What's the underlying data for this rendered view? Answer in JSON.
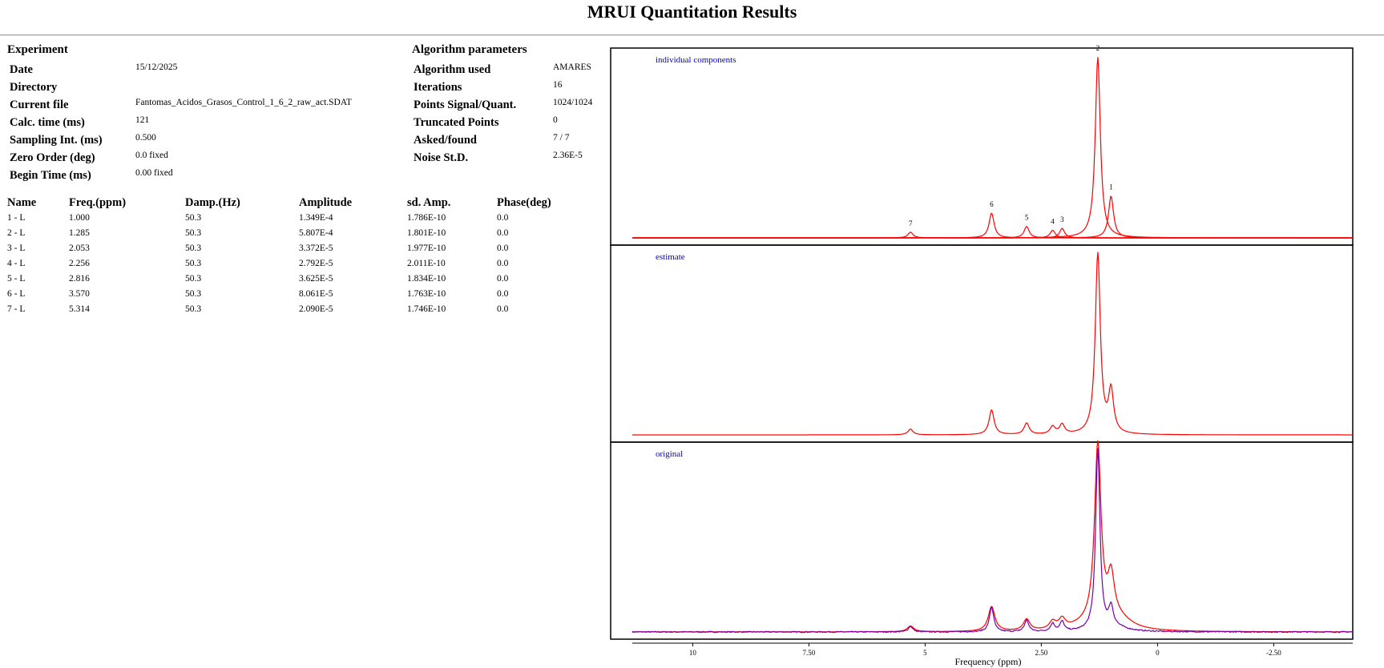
{
  "page_title": "MRUI Quantitation Results",
  "experiment": {
    "heading": "Experiment",
    "rows": [
      {
        "label": "Date",
        "value": "15/12/2025"
      },
      {
        "label": "Directory",
        "value": ""
      },
      {
        "label": "Current file",
        "value": "Fantomas_Acidos_Grasos_Control_1_6_2_raw_act.SDAT"
      },
      {
        "label": "Calc. time (ms)",
        "value": "121"
      },
      {
        "label": "Sampling Int. (ms)",
        "value": "0.500"
      },
      {
        "label": "Zero Order (deg)",
        "value": "0.0 fixed"
      },
      {
        "label": "Begin Time (ms)",
        "value": "0.00 fixed"
      }
    ]
  },
  "algorithm": {
    "heading": "Algorithm parameters",
    "rows": [
      {
        "label": "Algorithm used",
        "value": "AMARES"
      },
      {
        "label": "Iterations",
        "value": "16"
      },
      {
        "label": "Points Signal/Quant.",
        "value": "1024/1024"
      },
      {
        "label": "Truncated Points",
        "value": "0"
      },
      {
        "label": "Asked/found",
        "value": "7 / 7"
      },
      {
        "label": "Noise St.D.",
        "value": "2.36E-5"
      }
    ]
  },
  "results_table": {
    "headers": [
      "Name",
      "Freq.(ppm)",
      "Damp.(Hz)",
      "Amplitude",
      "sd. Amp.",
      "Phase(deg)"
    ],
    "rows": [
      [
        "1 - L",
        "1.000",
        "50.3",
        "1.349E-4",
        "1.786E-10",
        "0.0"
      ],
      [
        "2 - L",
        "1.285",
        "50.3",
        "5.807E-4",
        "1.801E-10",
        "0.0"
      ],
      [
        "3 - L",
        "2.053",
        "50.3",
        "3.372E-5",
        "1.977E-10",
        "0.0"
      ],
      [
        "4 - L",
        "2.256",
        "50.3",
        "2.792E-5",
        "2.011E-10",
        "0.0"
      ],
      [
        "5 - L",
        "2.816",
        "50.3",
        "3.625E-5",
        "1.834E-10",
        "0.0"
      ],
      [
        "6 - L",
        "3.570",
        "50.3",
        "8.061E-5",
        "1.763E-10",
        "0.0"
      ],
      [
        "7 - L",
        "5.314",
        "50.3",
        "2.090E-5",
        "1.746E-10",
        "0.0"
      ]
    ]
  },
  "chart_data": {
    "type": "line",
    "xlabel": "Frequency (ppm)",
    "x_ticks": [
      "10",
      "7.50",
      "5",
      "2.50",
      "0",
      "-2.50"
    ],
    "x_tick_values": [
      10,
      7.5,
      5,
      2.5,
      0,
      -2.5
    ],
    "xlim": [
      11.3,
      -4.2
    ],
    "x_reversed": true,
    "ylim": [
      0,
      1.0
    ],
    "grid": false,
    "colors": {
      "fit": "#ff0000",
      "original": "#7700aa",
      "panel_label": "#0000cc",
      "axis": "#000000"
    },
    "panels": [
      {
        "label": "individual components",
        "series": [
          {
            "curve": "components",
            "color": "#ff0000",
            "peak_labels": [
              "1",
              "2",
              "3",
              "4",
              "5",
              "6",
              "7"
            ]
          }
        ]
      },
      {
        "label": "estimate",
        "series": [
          {
            "curve": "sum",
            "color": "#ff0000"
          }
        ]
      },
      {
        "label": "original",
        "series": [
          {
            "curve": "sum_broad",
            "color": "#ff0000"
          },
          {
            "curve": "original",
            "color": "#7700aa"
          }
        ]
      }
    ],
    "peaks": [
      {
        "name": "1",
        "ppm": 1.0,
        "height": 0.22
      },
      {
        "name": "2",
        "ppm": 1.285,
        "height": 0.95
      },
      {
        "name": "3",
        "ppm": 2.053,
        "height": 0.05
      },
      {
        "name": "4",
        "ppm": 2.256,
        "height": 0.04
      },
      {
        "name": "5",
        "ppm": 2.816,
        "height": 0.06
      },
      {
        "name": "6",
        "ppm": 3.57,
        "height": 0.13
      },
      {
        "name": "7",
        "ppm": 5.314,
        "height": 0.03
      }
    ]
  }
}
